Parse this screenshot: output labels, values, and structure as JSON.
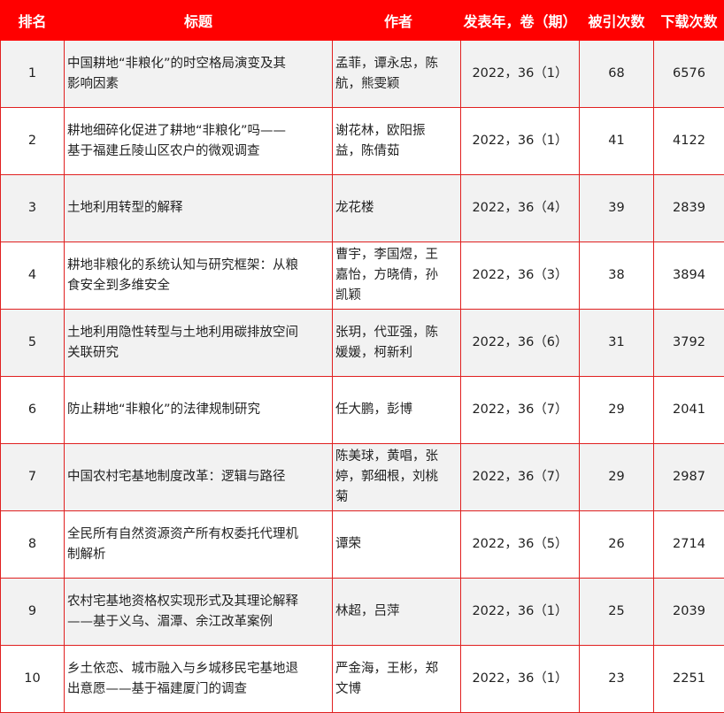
{
  "headers": {
    "rank": "排名",
    "title": "标题",
    "authors": "作者",
    "pub": "发表年，卷（期）",
    "cited": "被引次数",
    "downloads": "下载次数"
  },
  "colors": {
    "header_bg": "#ff0000",
    "border": "#e02020",
    "row_alt": "#f2f2f2"
  },
  "rows": [
    {
      "rank": "1",
      "title": "中国耕地“非粮化”的时空格局演变及其\n影响因素",
      "authors": "孟菲，谭永忠，陈\n航，熊雯颖",
      "pub": "2022，36（1）",
      "cited": "68",
      "downloads": "6576"
    },
    {
      "rank": "2",
      "title": "耕地细碎化促进了耕地“非粮化”吗——\n基于福建丘陵山区农户的微观调查",
      "authors": "谢花林，欧阳振\n益，陈倩茹",
      "pub": "2022，36（1）",
      "cited": "41",
      "downloads": "4122"
    },
    {
      "rank": "3",
      "title": "土地利用转型的解释",
      "authors": "龙花楼",
      "pub": "2022，36（4）",
      "cited": "39",
      "downloads": "2839"
    },
    {
      "rank": "4",
      "title": "耕地非粮化的系统认知与研究框架：从粮\n食安全到多维安全",
      "authors": "曹宇，李国煜，王\n嘉怡，方晓倩，孙\n凯颖",
      "pub": "2022，36（3）",
      "cited": "38",
      "downloads": "3894"
    },
    {
      "rank": "5",
      "title": "土地利用隐性转型与土地利用碳排放空间\n关联研究",
      "authors": "张玥，代亚强，陈\n媛媛，柯新利",
      "pub": "2022，36（6）",
      "cited": "31",
      "downloads": "3792"
    },
    {
      "rank": "6",
      "title": "防止耕地“非粮化”的法律规制研究",
      "authors": "任大鹏，彭博",
      "pub": "2022，36（7）",
      "cited": "29",
      "downloads": "2041"
    },
    {
      "rank": "7",
      "title": "中国农村宅基地制度改革：逻辑与路径",
      "authors": "陈美球，黄唱，张\n婷，郭细根，刘桃\n菊",
      "pub": "2022，36（7）",
      "cited": "29",
      "downloads": "2987"
    },
    {
      "rank": "8",
      "title": "全民所有自然资源资产所有权委托代理机\n制解析",
      "authors": "谭荣",
      "pub": "2022，36（5）",
      "cited": "26",
      "downloads": "2714"
    },
    {
      "rank": "9",
      "title": "农村宅基地资格权实现形式及其理论解释\n——基于义乌、湄潭、余江改革案例",
      "authors": "林超，吕萍",
      "pub": "2022，36（1）",
      "cited": "25",
      "downloads": "2039"
    },
    {
      "rank": "10",
      "title": "乡土依恋、城市融入与乡城移民宅基地退\n出意愿——基于福建厦门的调查",
      "authors": "严金海，王彬，郑\n文博",
      "pub": "2022，36（1）",
      "cited": "23",
      "downloads": "2251"
    }
  ]
}
